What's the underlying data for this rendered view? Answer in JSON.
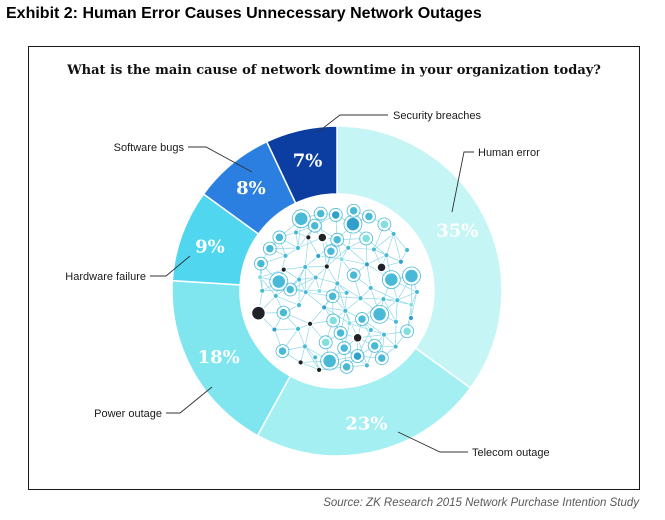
{
  "exhibit_title": "Exhibit 2: Human Error Causes Unnecessary Network Outages",
  "source": "Source: ZK Research 2015 Network Purchase Intention Study",
  "chart_data": {
    "type": "pie",
    "title": "What is the main cause of network downtime in your organization today?",
    "donut": true,
    "start": "12 o'clock",
    "direction": "clockwise",
    "slices": [
      {
        "label": "Human error",
        "value": 35,
        "value_label": "35%",
        "color": "#c6f5f5",
        "text_color": "#ffffff"
      },
      {
        "label": "Telecom outage",
        "value": 23,
        "value_label": "23%",
        "color": "#a4eff2",
        "text_color": "#ffffff"
      },
      {
        "label": "Power outage",
        "value": 18,
        "value_label": "18%",
        "color": "#7fe6ef",
        "text_color": "#ffffff"
      },
      {
        "label": "Hardware failure",
        "value": 9,
        "value_label": "9%",
        "color": "#50d6ef",
        "text_color": "#ffffff"
      },
      {
        "label": "Software bugs",
        "value": 8,
        "value_label": "8%",
        "color": "#2a7fe0",
        "text_color": "#ffffff"
      },
      {
        "label": "Security breaches",
        "value": 7,
        "value_label": "7%",
        "color": "#0b3ea0",
        "text_color": "#ffffff"
      }
    ],
    "center_image": "network-graph-illustration"
  }
}
